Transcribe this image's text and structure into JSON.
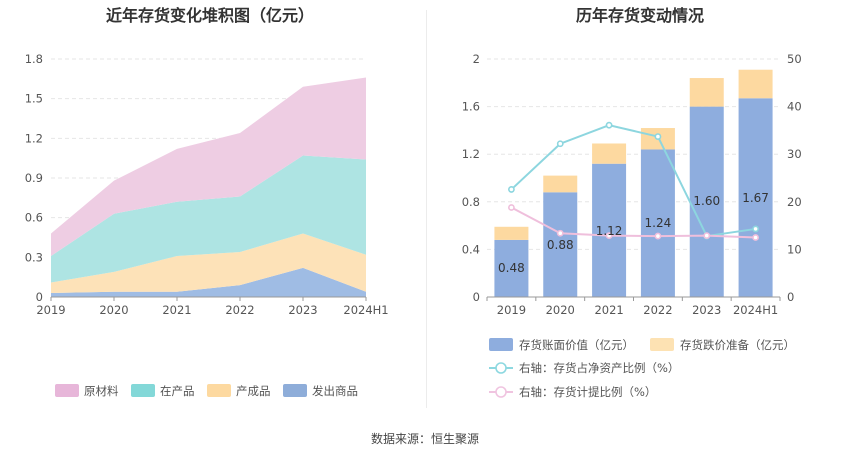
{
  "left_chart": {
    "title": "近年存货变化堆积图（亿元）",
    "legend": [
      {
        "label": "原材料",
        "color": "#e7b6d9"
      },
      {
        "label": "在产品",
        "color": "#83d8d8"
      },
      {
        "label": "产成品",
        "color": "#fdd9a0"
      },
      {
        "label": "发出商品",
        "color": "#8eadd9"
      }
    ]
  },
  "right_chart": {
    "title": "历年存货变动情况",
    "legend": [
      {
        "label": "存货账面价值（亿元）",
        "color": "#8eadde"
      },
      {
        "label": "存货跌价准备（亿元）",
        "color": "#fde2b3"
      },
      {
        "label": "右轴：存货占净资产比例（%）",
        "color": "#8dd8e0"
      },
      {
        "label": "右轴：存货计提比例（%）",
        "color": "#f0c4e0"
      }
    ]
  },
  "source": "数据来源：恒生聚源",
  "chart_data": [
    {
      "type": "area",
      "stacked": true,
      "title": "近年存货变化堆积图（亿元）",
      "categories": [
        "2019",
        "2020",
        "2021",
        "2022",
        "2023",
        "2024H1"
      ],
      "ylim": [
        0,
        1.8
      ],
      "yticks": [
        "0",
        "0.3",
        "0.6",
        "0.9",
        "1.2",
        "1.5",
        "1.8"
      ],
      "series": [
        {
          "name": "发出商品",
          "color": "#9fbce4",
          "values": [
            0.03,
            0.04,
            0.04,
            0.09,
            0.22,
            0.04
          ]
        },
        {
          "name": "产成品",
          "color": "#fde2b8",
          "values": [
            0.08,
            0.15,
            0.27,
            0.25,
            0.26,
            0.28
          ]
        },
        {
          "name": "在产品",
          "color": "#aee4e3",
          "values": [
            0.2,
            0.44,
            0.41,
            0.42,
            0.59,
            0.72
          ]
        },
        {
          "name": "原材料",
          "color": "#eecde3",
          "values": [
            0.17,
            0.25,
            0.4,
            0.48,
            0.52,
            0.62
          ]
        }
      ],
      "legend_position": "bottom",
      "grid": true
    },
    {
      "type": "bar",
      "stacked": true,
      "title": "历年存货变动情况",
      "categories": [
        "2019",
        "2020",
        "2021",
        "2022",
        "2023",
        "2024H1"
      ],
      "ylim_left": [
        0,
        2
      ],
      "yticks_left": [
        "0",
        "0.4",
        "0.8",
        "1.2",
        "1.6",
        "2"
      ],
      "ylim_right": [
        0,
        50
      ],
      "yticks_right": [
        "0",
        "10",
        "20",
        "30",
        "40",
        "50"
      ],
      "series": [
        {
          "name": "存货账面价值（亿元）",
          "color": "#8eadde",
          "values": [
            0.48,
            0.88,
            1.12,
            1.24,
            1.6,
            1.67
          ],
          "labels": [
            "0.48",
            "0.88",
            "1.12",
            "1.24",
            "1.60",
            "1.67"
          ]
        },
        {
          "name": "存货跌价准备（亿元）",
          "color": "#fdd9a0",
          "values": [
            0.11,
            0.14,
            0.17,
            0.18,
            0.24,
            0.24
          ]
        }
      ],
      "line_series": [
        {
          "name": "右轴：存货占净资产比例（%）",
          "color": "#8dd6df",
          "axis": "right",
          "values": [
            22.6,
            32.2,
            36.1,
            33.7,
            12.8,
            14.3
          ]
        },
        {
          "name": "右轴：存货计提比例（%）",
          "color": "#efbfdc",
          "axis": "right",
          "values": [
            18.8,
            13.4,
            12.9,
            12.8,
            12.9,
            12.5
          ]
        }
      ],
      "legend_position": "bottom",
      "grid": true
    }
  ]
}
